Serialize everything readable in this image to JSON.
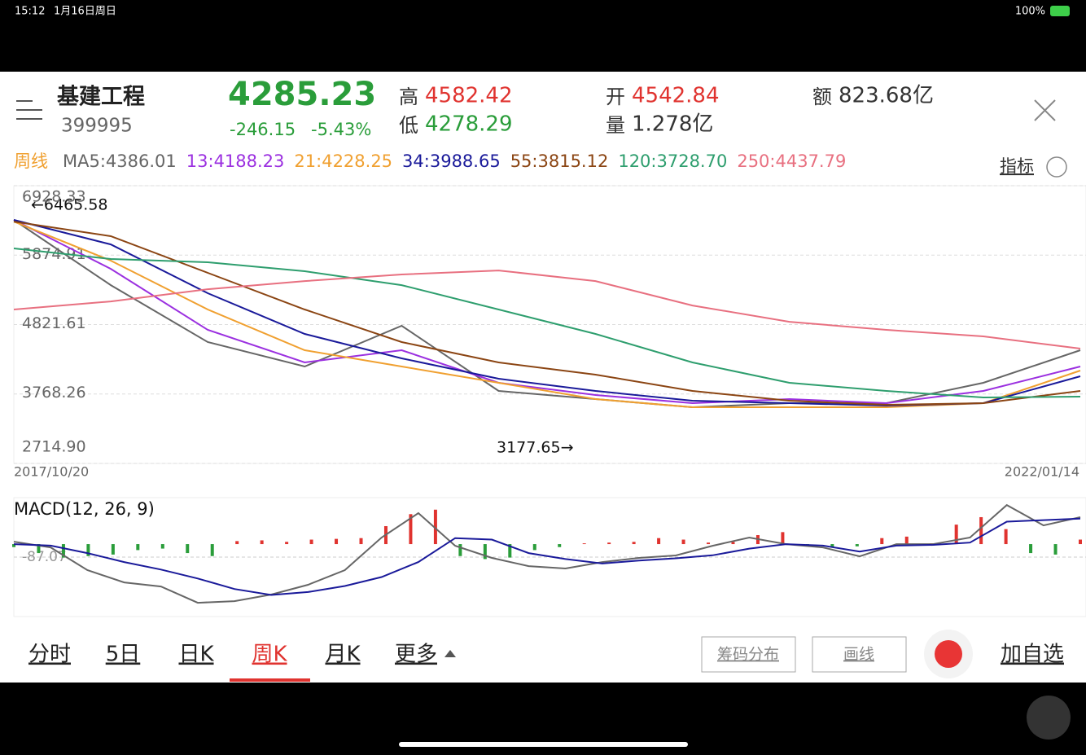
{
  "status": {
    "time": "15:12",
    "date": "1月16日周日",
    "battery": "100%"
  },
  "header": {
    "name": "基建工程",
    "code": "399995",
    "price": "4285.23",
    "change": "-246.15",
    "change_pct": "-5.43%",
    "high_label": "高",
    "high": "4582.42",
    "low_label": "低",
    "low": "4278.29",
    "open_label": "开",
    "open": "4542.84",
    "volume_label": "量",
    "volume": "1.278亿",
    "amount_label": "额",
    "amount": "823.68亿"
  },
  "ma_bar": {
    "period": "周线",
    "indicator": "指标"
  },
  "chart_data": [
    {
      "type": "line",
      "ylim": [
        2714.9,
        6928.33
      ],
      "yticks": [
        6928.33,
        5874.91,
        4821.61,
        3768.26,
        {
          "value": 2714.9,
          "label": "2714.90"
        }
      ],
      "grid": true,
      "x_start": "2017/10/20",
      "x_end": "2022/01/14",
      "annotations": [
        "←6465.58",
        "3177.65→"
      ],
      "series": [
        {
          "name": "MA5:4386.01",
          "color": "#666666",
          "values": [
            6409,
            5420,
            4556,
            4185,
            4803,
            3815,
            3691,
            3567,
            3629,
            3629,
            3938,
            4432
          ]
        },
        {
          "name": "13:4188.23",
          "color": "#9b30e0",
          "values": [
            6409,
            5667,
            4741,
            4247,
            4432,
            3938,
            3753,
            3629,
            3691,
            3629,
            3815,
            4185
          ]
        },
        {
          "name": "21:4228.25",
          "color": "#f0a030",
          "values": [
            6384,
            5791,
            5050,
            4432,
            4185,
            3938,
            3691,
            3567,
            3567,
            3567,
            3629,
            4124
          ]
        },
        {
          "name": "34:3988.65",
          "color": "#1a1a9a",
          "values": [
            6409,
            6038,
            5297,
            4679,
            4309,
            4000,
            3815,
            3666,
            3629,
            3592,
            3629,
            4037
          ]
        },
        {
          "name": "55:3815.12",
          "color": "#8b4513",
          "values": [
            6384,
            6162,
            5606,
            5050,
            4556,
            4247,
            4062,
            3815,
            3666,
            3604,
            3629,
            3815
          ]
        },
        {
          "name": "120:3728.70",
          "color": "#2e9e6e",
          "values": [
            5977,
            5816,
            5767,
            5631,
            5420,
            5050,
            4679,
            4247,
            3938,
            3815,
            3716,
            3728
          ]
        },
        {
          "name": "250:4437.79",
          "color": "#e87080",
          "values": [
            5050,
            5173,
            5358,
            5482,
            5581,
            5642,
            5482,
            5111,
            4864,
            4741,
            4642,
            4457
          ]
        }
      ]
    },
    {
      "type": "macd",
      "title": "MACD(12, 26, 9)",
      "ylim": [
        -484,
        305
      ],
      "yticks": [
        -87.07
      ],
      "up_color": "#e0332f",
      "down_color": "#2a9d3a",
      "histogram": [
        -20,
        -60,
        -90,
        -80,
        -70,
        -40,
        -30,
        -60,
        -80,
        20,
        25,
        15,
        30,
        35,
        40,
        120,
        200,
        230,
        -80,
        -100,
        -90,
        -40,
        -20,
        5,
        10,
        15,
        40,
        30,
        10,
        15,
        60,
        80,
        -10,
        -20,
        -15,
        40,
        50,
        5,
        130,
        180,
        100,
        -60,
        -70,
        30
      ],
      "series": [
        {
          "color": "#666666",
          "values": [
            16,
            -22,
            -174,
            -256,
            -283,
            -392,
            -381,
            -337,
            -272,
            -174,
            44,
            207,
            -11,
            -92,
            -147,
            -163,
            -120,
            -92,
            -76,
            -11,
            44,
            0,
            -22,
            -82,
            0,
            0,
            44,
            261,
            125,
            180
          ]
        },
        {
          "color": "#1a1a9a",
          "values": [
            0,
            -10,
            -60,
            -120,
            -170,
            -230,
            -300,
            -340,
            -320,
            -280,
            -220,
            -120,
            40,
            30,
            -60,
            -100,
            -130,
            -110,
            -95,
            -75,
            -30,
            0,
            -10,
            -50,
            -10,
            -5,
            10,
            150,
            160,
            170
          ]
        }
      ]
    }
  ],
  "tabs": [
    "分时",
    "5日",
    "日K",
    "周K",
    "月K",
    "更多"
  ],
  "selected_tab": 3,
  "buttons": [
    "筹码分布",
    "画线"
  ],
  "add_label": "加自选"
}
